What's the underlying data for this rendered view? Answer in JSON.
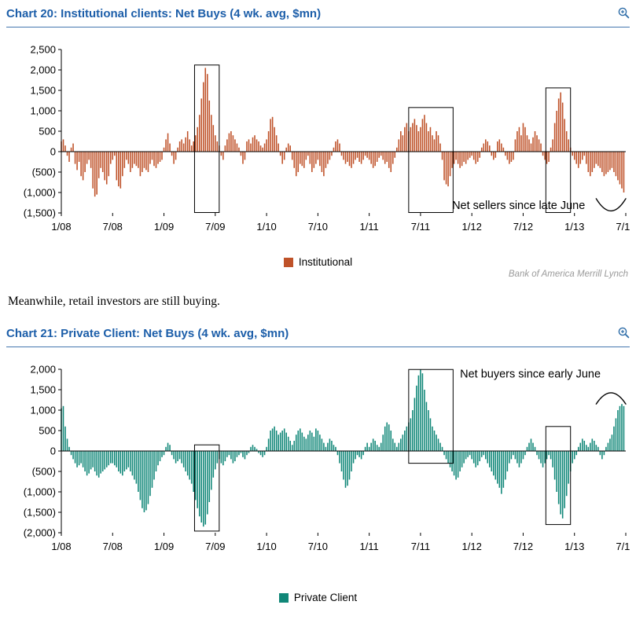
{
  "page": {
    "body_text": "Meanwhile, retail investors are still buying.",
    "attribution": "Bank of America Merrill Lynch"
  },
  "colors": {
    "title_blue": "#1C5EA9",
    "institutional_bar": "#BF5229",
    "private_client_bar": "#108778",
    "attribution_gray": "#9A9A9A"
  },
  "icons": {
    "chart20_zoom": "zoom-in",
    "chart21_zoom": "zoom-in"
  },
  "chart_data": [
    {
      "id": "chart20",
      "type": "bar",
      "title": "Chart 20: Institutional clients: Net Buys (4 wk. avg, $mn)",
      "legend_label": "Institutional",
      "legend_position": "bottom",
      "color": "#BF5229",
      "grid": false,
      "ylim": [
        -1500,
        2500
      ],
      "yticks": [
        2500,
        2000,
        1500,
        1000,
        500,
        0,
        -500,
        -1000,
        -1500
      ],
      "ytick_labels": [
        "2,500",
        "2,000",
        "1,500",
        "1,000",
        "500",
        "0",
        "(500)",
        "(1,000)",
        "(1,500)"
      ],
      "x_labels": [
        "1/08",
        "7/08",
        "1/09",
        "7/09",
        "1/10",
        "7/10",
        "1/11",
        "7/11",
        "1/12",
        "7/12",
        "1/13",
        "7/13"
      ],
      "values": [
        250,
        300,
        150,
        -100,
        -250,
        100,
        200,
        -300,
        -450,
        -250,
        -600,
        -700,
        -500,
        -300,
        -200,
        -400,
        -900,
        -1100,
        -1050,
        -650,
        -400,
        -500,
        -700,
        -800,
        -600,
        -300,
        -200,
        -100,
        -700,
        -850,
        -900,
        -600,
        -400,
        -200,
        -300,
        -500,
        -400,
        -300,
        -350,
        -400,
        -600,
        -500,
        -400,
        -450,
        -500,
        -300,
        -200,
        -350,
        -400,
        -300,
        -250,
        -200,
        100,
        300,
        450,
        200,
        -100,
        -300,
        -200,
        100,
        250,
        300,
        200,
        350,
        500,
        300,
        150,
        250,
        400,
        600,
        900,
        1300,
        1700,
        2050,
        1900,
        1250,
        900,
        650,
        400,
        250,
        150,
        -100,
        -200,
        150,
        300,
        450,
        500,
        400,
        300,
        200,
        100,
        -100,
        -300,
        -200,
        250,
        300,
        200,
        350,
        400,
        300,
        250,
        150,
        100,
        200,
        300,
        500,
        800,
        850,
        600,
        400,
        200,
        -100,
        -300,
        -200,
        100,
        200,
        150,
        -200,
        -400,
        -600,
        -500,
        -300,
        -350,
        -400,
        -200,
        -100,
        -300,
        -500,
        -400,
        -300,
        -200,
        -350,
        -500,
        -600,
        -400,
        -300,
        -200,
        -100,
        100,
        250,
        300,
        200,
        -100,
        -200,
        -300,
        -250,
        -350,
        -400,
        -300,
        -200,
        -150,
        -250,
        -300,
        -200,
        -100,
        -150,
        -200,
        -300,
        -400,
        -350,
        -250,
        -150,
        -100,
        -200,
        -300,
        -250,
        -400,
        -500,
        -300,
        -150,
        100,
        300,
        500,
        400,
        600,
        700,
        500,
        600,
        700,
        800,
        650,
        500,
        600,
        800,
        900,
        700,
        500,
        600,
        400,
        300,
        500,
        400,
        200,
        -200,
        -700,
        -800,
        -850,
        -600,
        -400,
        -300,
        -200,
        -300,
        -400,
        -350,
        -250,
        -300,
        -200,
        -150,
        -100,
        -200,
        -300,
        -250,
        -150,
        100,
        200,
        300,
        250,
        150,
        -100,
        -200,
        -150,
        250,
        300,
        200,
        100,
        -100,
        -200,
        -300,
        -250,
        -200,
        300,
        500,
        600,
        400,
        700,
        600,
        400,
        300,
        200,
        350,
        500,
        400,
        300,
        200,
        -100,
        -200,
        -300,
        -250,
        100,
        300,
        700,
        1000,
        1300,
        1450,
        1200,
        800,
        500,
        300,
        100,
        -100,
        -200,
        -300,
        -400,
        -300,
        -200,
        -100,
        -300,
        -500,
        -600,
        -500,
        -400,
        -300,
        -350,
        -400,
        -500,
        -600,
        -550,
        -500,
        -450,
        -400,
        -500,
        -600,
        -700,
        -800,
        -900,
        -1000
      ],
      "highlight_boxes": [
        {
          "w1": 67.5,
          "w2": 80,
          "v1": 2120,
          "v2": -1490
        },
        {
          "w1": 176,
          "w2": 198.5,
          "v1": 1080,
          "v2": -1490
        },
        {
          "w1": 245.5,
          "w2": 258,
          "v1": 1560,
          "v2": -1490
        }
      ],
      "annotation": {
        "text": "Net sellers since late June",
        "week": 198,
        "value": -1400
      },
      "bracket": {
        "week1": 271,
        "week2": 286,
        "value_end": -1150,
        "value_mid": -1750
      }
    },
    {
      "id": "chart21",
      "type": "bar",
      "title": "Chart 21: Private Client: Net Buys (4 wk. avg, $mn)",
      "legend_label": "Private Client",
      "legend_position": "bottom",
      "color": "#108778",
      "grid": false,
      "ylim": [
        -2000,
        2000
      ],
      "yticks": [
        2000,
        1500,
        1000,
        500,
        0,
        -500,
        -1000,
        -1500,
        -2000
      ],
      "ytick_labels": [
        "2,000",
        "1,500",
        "1,000",
        "500",
        "0",
        "(500)",
        "(1,000)",
        "(1,500)",
        "(2,000)"
      ],
      "x_labels": [
        "1/08",
        "7/08",
        "1/09",
        "7/09",
        "1/10",
        "7/10",
        "1/11",
        "7/11",
        "1/12",
        "7/12",
        "1/13",
        "7/13"
      ],
      "values": [
        1050,
        1100,
        600,
        300,
        100,
        -100,
        -200,
        -300,
        -400,
        -350,
        -300,
        -400,
        -500,
        -600,
        -550,
        -450,
        -400,
        -500,
        -600,
        -650,
        -550,
        -500,
        -450,
        -400,
        -350,
        -300,
        -300,
        -350,
        -400,
        -500,
        -550,
        -600,
        -500,
        -450,
        -400,
        -500,
        -600,
        -700,
        -800,
        -1000,
        -1200,
        -1400,
        -1500,
        -1450,
        -1300,
        -1100,
        -900,
        -700,
        -500,
        -350,
        -250,
        -150,
        -100,
        100,
        200,
        150,
        -100,
        -200,
        -300,
        -250,
        -200,
        -300,
        -400,
        -500,
        -600,
        -700,
        -800,
        -1000,
        -1200,
        -1400,
        -1600,
        -1750,
        -1850,
        -1800,
        -1550,
        -1250,
        -950,
        -650,
        -450,
        -300,
        -200,
        -300,
        -350,
        -250,
        -150,
        -100,
        -200,
        -300,
        -250,
        -150,
        -100,
        -50,
        -150,
        -200,
        -100,
        -50,
        100,
        150,
        100,
        50,
        -50,
        -100,
        -150,
        -100,
        100,
        300,
        500,
        550,
        600,
        500,
        400,
        450,
        500,
        550,
        450,
        350,
        250,
        150,
        250,
        400,
        500,
        550,
        450,
        350,
        300,
        400,
        500,
        450,
        350,
        550,
        500,
        400,
        300,
        200,
        100,
        200,
        300,
        250,
        150,
        100,
        -100,
        -300,
        -500,
        -700,
        -900,
        -850,
        -700,
        -500,
        -300,
        -200,
        -100,
        -150,
        -200,
        -100,
        100,
        200,
        100,
        200,
        300,
        250,
        150,
        100,
        200,
        400,
        600,
        700,
        650,
        500,
        300,
        200,
        100,
        200,
        300,
        400,
        500,
        600,
        700,
        800,
        1000,
        1300,
        1600,
        1850,
        2000,
        1900,
        1500,
        1200,
        1000,
        800,
        600,
        500,
        400,
        300,
        200,
        100,
        -100,
        -200,
        -300,
        -400,
        -500,
        -600,
        -700,
        -650,
        -500,
        -400,
        -300,
        -200,
        -150,
        -100,
        -200,
        -300,
        -400,
        -350,
        -250,
        -150,
        -100,
        -200,
        -300,
        -400,
        -500,
        -600,
        -700,
        -800,
        -900,
        -1050,
        -900,
        -700,
        -500,
        -300,
        -200,
        -100,
        -200,
        -300,
        -400,
        -300,
        -200,
        -100,
        100,
        200,
        300,
        200,
        100,
        -100,
        -200,
        -300,
        -400,
        -300,
        -200,
        -100,
        -200,
        -400,
        -700,
        -1000,
        -1300,
        -1550,
        -1650,
        -1400,
        -1100,
        -800,
        -500,
        -300,
        -200,
        -100,
        100,
        200,
        300,
        250,
        150,
        100,
        200,
        300,
        250,
        150,
        100,
        -100,
        -200,
        -100,
        100,
        200,
        300,
        400,
        600,
        800,
        1000,
        1100,
        1150,
        1100
      ],
      "highlight_boxes": [
        {
          "w1": 67.5,
          "w2": 80,
          "v1": 150,
          "v2": -1960
        },
        {
          "w1": 176,
          "w2": 198.5,
          "v1": 1995,
          "v2": -300
        },
        {
          "w1": 245.5,
          "w2": 258,
          "v1": 600,
          "v2": -1800
        }
      ],
      "annotation": {
        "text": "Net buyers since early June",
        "week": 202,
        "value": 1800
      },
      "bracket": {
        "week1": 271,
        "week2": 286,
        "value_end": 1150,
        "value_mid": 1700
      }
    }
  ]
}
